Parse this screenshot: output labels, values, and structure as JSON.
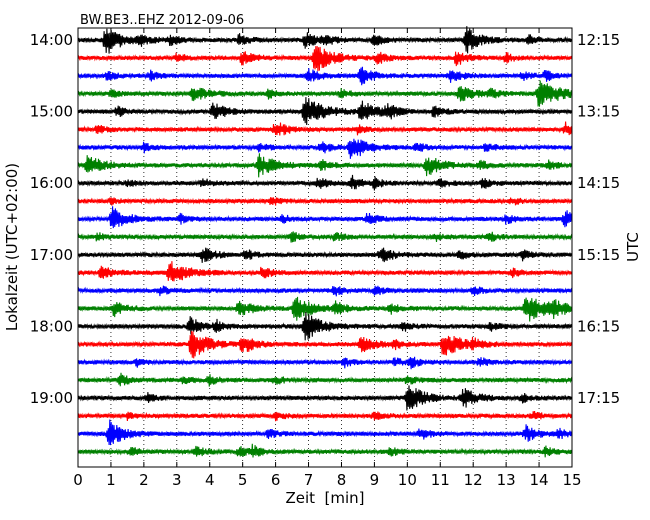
{
  "chart_data": {
    "type": "line",
    "title": "BW.BE3..EHZ 2012-09-06",
    "xlabel": "Zeit  [min]",
    "ylabel": "Lokalzeit (UTC+02:00)",
    "ylabel_right": "UTC",
    "xlim": [
      0,
      15
    ],
    "x_ticks": [
      "0",
      "1",
      "2",
      "3",
      "4",
      "5",
      "6",
      "7",
      "8",
      "9",
      "10",
      "11",
      "12",
      "13",
      "14",
      "15"
    ],
    "x_grid": true,
    "trace_interval_min": 15,
    "trace_count": 24,
    "trace_colors": [
      "#000000",
      "#ff0000",
      "#0000ff",
      "#008000"
    ],
    "left_ticks": [
      {
        "label": "14:00",
        "trace": 0
      },
      {
        "label": "15:00",
        "trace": 4
      },
      {
        "label": "16:00",
        "trace": 8
      },
      {
        "label": "17:00",
        "trace": 12
      },
      {
        "label": "18:00",
        "trace": 16
      },
      {
        "label": "19:00",
        "trace": 20
      }
    ],
    "right_ticks": [
      {
        "label": "12:15",
        "trace": 0
      },
      {
        "label": "13:15",
        "trace": 4
      },
      {
        "label": "14:15",
        "trace": 8
      },
      {
        "label": "15:15",
        "trace": 12
      },
      {
        "label": "16:15",
        "trace": 16
      },
      {
        "label": "17:15",
        "trace": 20
      }
    ],
    "events": [
      [
        [
          0.85,
          1.0,
          1.0
        ],
        [
          1.9,
          0.35,
          0.6
        ],
        [
          2.8,
          0.3,
          0.6
        ],
        [
          4.9,
          0.4,
          0.6
        ],
        [
          6.9,
          0.5,
          0.8
        ],
        [
          7.5,
          0.3,
          0.6
        ],
        [
          9.0,
          0.35,
          0.6
        ],
        [
          11.8,
          0.9,
          0.8
        ],
        [
          13.7,
          0.3,
          0.6
        ]
      ],
      [
        [
          3.0,
          0.3,
          0.5
        ],
        [
          5.0,
          0.5,
          0.7
        ],
        [
          7.2,
          1.0,
          1.0
        ],
        [
          9.1,
          0.4,
          0.6
        ],
        [
          11.5,
          0.5,
          0.7
        ],
        [
          13.0,
          0.3,
          0.5
        ]
      ],
      [
        [
          0.9,
          0.3,
          0.5
        ],
        [
          2.2,
          0.3,
          0.5
        ],
        [
          7.0,
          0.45,
          0.7
        ],
        [
          8.6,
          0.55,
          0.8
        ],
        [
          11.3,
          0.45,
          0.7
        ],
        [
          13.5,
          0.3,
          0.5
        ],
        [
          14.2,
          0.35,
          0.5
        ]
      ],
      [
        [
          1.0,
          0.25,
          0.5
        ],
        [
          3.5,
          0.5,
          0.9
        ],
        [
          5.8,
          0.3,
          0.5
        ],
        [
          8.0,
          0.3,
          0.5
        ],
        [
          11.6,
          0.6,
          0.9
        ],
        [
          12.5,
          0.3,
          0.5
        ],
        [
          14.0,
          1.0,
          1.2
        ]
      ],
      [
        [
          1.2,
          0.35,
          0.5
        ],
        [
          4.1,
          0.6,
          0.8
        ],
        [
          6.9,
          1.0,
          1.2
        ],
        [
          8.6,
          0.7,
          1.0
        ],
        [
          9.4,
          0.45,
          0.6
        ],
        [
          10.8,
          0.35,
          0.6
        ]
      ],
      [
        [
          0.6,
          0.25,
          0.5
        ],
        [
          6.0,
          0.55,
          0.8
        ],
        [
          8.5,
          0.3,
          0.5
        ],
        [
          14.8,
          0.45,
          0.7
        ]
      ],
      [
        [
          2.0,
          0.3,
          0.5
        ],
        [
          5.5,
          0.3,
          0.5
        ],
        [
          7.4,
          0.4,
          0.6
        ],
        [
          8.3,
          0.9,
          0.9
        ],
        [
          10.3,
          0.3,
          0.5
        ],
        [
          12.4,
          0.3,
          0.5
        ]
      ],
      [
        [
          0.3,
          0.7,
          0.9
        ],
        [
          5.5,
          0.8,
          1.0
        ],
        [
          7.4,
          0.35,
          0.5
        ],
        [
          10.6,
          0.7,
          0.9
        ],
        [
          12.2,
          0.3,
          0.5
        ],
        [
          14.3,
          0.3,
          0.5
        ]
      ],
      [
        [
          1.5,
          0.25,
          0.4
        ],
        [
          3.8,
          0.3,
          0.5
        ],
        [
          7.3,
          0.4,
          0.5
        ],
        [
          8.3,
          0.5,
          0.6
        ],
        [
          9.0,
          0.35,
          0.5
        ],
        [
          11.0,
          0.3,
          0.5
        ],
        [
          12.3,
          0.35,
          0.5
        ]
      ],
      [
        [
          1.0,
          0.2,
          0.4
        ],
        [
          5.9,
          0.3,
          0.5
        ],
        [
          13.2,
          0.25,
          0.4
        ]
      ],
      [
        [
          1.05,
          0.8,
          0.9
        ],
        [
          3.1,
          0.3,
          0.5
        ],
        [
          6.2,
          0.3,
          0.5
        ],
        [
          8.8,
          0.4,
          0.6
        ],
        [
          13.0,
          0.3,
          0.5
        ],
        [
          14.8,
          0.55,
          0.7
        ]
      ],
      [
        [
          0.6,
          0.25,
          0.4
        ],
        [
          6.5,
          0.35,
          0.5
        ],
        [
          7.8,
          0.3,
          0.5
        ],
        [
          10.8,
          0.3,
          0.5
        ],
        [
          12.5,
          0.3,
          0.5
        ]
      ],
      [
        [
          3.8,
          0.55,
          0.7
        ],
        [
          5.1,
          0.35,
          0.5
        ],
        [
          9.2,
          0.6,
          0.7
        ],
        [
          11.6,
          0.3,
          0.5
        ],
        [
          13.5,
          0.35,
          0.5
        ]
      ],
      [
        [
          0.7,
          0.5,
          0.7
        ],
        [
          2.8,
          0.9,
          1.0
        ],
        [
          5.6,
          0.45,
          0.5
        ],
        [
          13.2,
          0.3,
          0.5
        ]
      ],
      [
        [
          2.5,
          0.3,
          0.5
        ],
        [
          7.8,
          0.4,
          0.5
        ],
        [
          9.0,
          0.35,
          0.5
        ],
        [
          12.0,
          0.3,
          0.5
        ]
      ],
      [
        [
          1.1,
          0.5,
          0.7
        ],
        [
          4.9,
          0.55,
          0.8
        ],
        [
          6.6,
          0.9,
          1.0
        ],
        [
          7.8,
          0.45,
          0.6
        ],
        [
          9.5,
          0.35,
          0.6
        ],
        [
          13.6,
          1.0,
          1.2
        ],
        [
          14.4,
          0.55,
          0.8
        ]
      ],
      [
        [
          3.4,
          0.6,
          0.8
        ],
        [
          4.2,
          0.35,
          0.5
        ],
        [
          6.9,
          1.0,
          1.0
        ],
        [
          9.9,
          0.3,
          0.5
        ],
        [
          12.5,
          0.3,
          0.5
        ]
      ],
      [
        [
          3.45,
          1.0,
          1.0
        ],
        [
          5.0,
          0.6,
          0.8
        ],
        [
          8.6,
          0.6,
          0.8
        ],
        [
          9.6,
          0.3,
          0.5
        ],
        [
          11.1,
          1.0,
          1.0
        ],
        [
          12.0,
          0.3,
          0.5
        ]
      ],
      [
        [
          1.8,
          0.25,
          0.4
        ],
        [
          8.1,
          0.3,
          0.5
        ],
        [
          9.6,
          0.3,
          0.5
        ],
        [
          10.1,
          0.4,
          0.5
        ],
        [
          12.2,
          0.3,
          0.5
        ]
      ],
      [
        [
          1.3,
          0.4,
          0.6
        ],
        [
          3.2,
          0.3,
          0.5
        ],
        [
          4.0,
          0.35,
          0.5
        ],
        [
          6.0,
          0.3,
          0.5
        ],
        [
          10.0,
          0.3,
          0.5
        ]
      ],
      [
        [
          2.1,
          0.3,
          0.5
        ],
        [
          10.0,
          1.0,
          1.0
        ],
        [
          11.7,
          0.7,
          0.8
        ],
        [
          13.5,
          0.3,
          0.5
        ]
      ],
      [
        [
          1.5,
          0.25,
          0.4
        ],
        [
          6.0,
          0.3,
          0.5
        ],
        [
          9.0,
          0.3,
          0.5
        ],
        [
          13.8,
          0.3,
          0.5
        ]
      ],
      [
        [
          0.95,
          0.9,
          0.9
        ],
        [
          5.8,
          0.3,
          0.5
        ],
        [
          10.4,
          0.4,
          0.6
        ],
        [
          13.6,
          0.55,
          0.7
        ],
        [
          14.6,
          0.3,
          0.5
        ]
      ],
      [
        [
          1.6,
          0.3,
          0.5
        ],
        [
          3.6,
          0.35,
          0.5
        ],
        [
          4.9,
          0.35,
          0.5
        ],
        [
          5.3,
          0.4,
          0.5
        ],
        [
          9.5,
          0.3,
          0.5
        ],
        [
          14.2,
          0.3,
          0.5
        ]
      ]
    ]
  }
}
